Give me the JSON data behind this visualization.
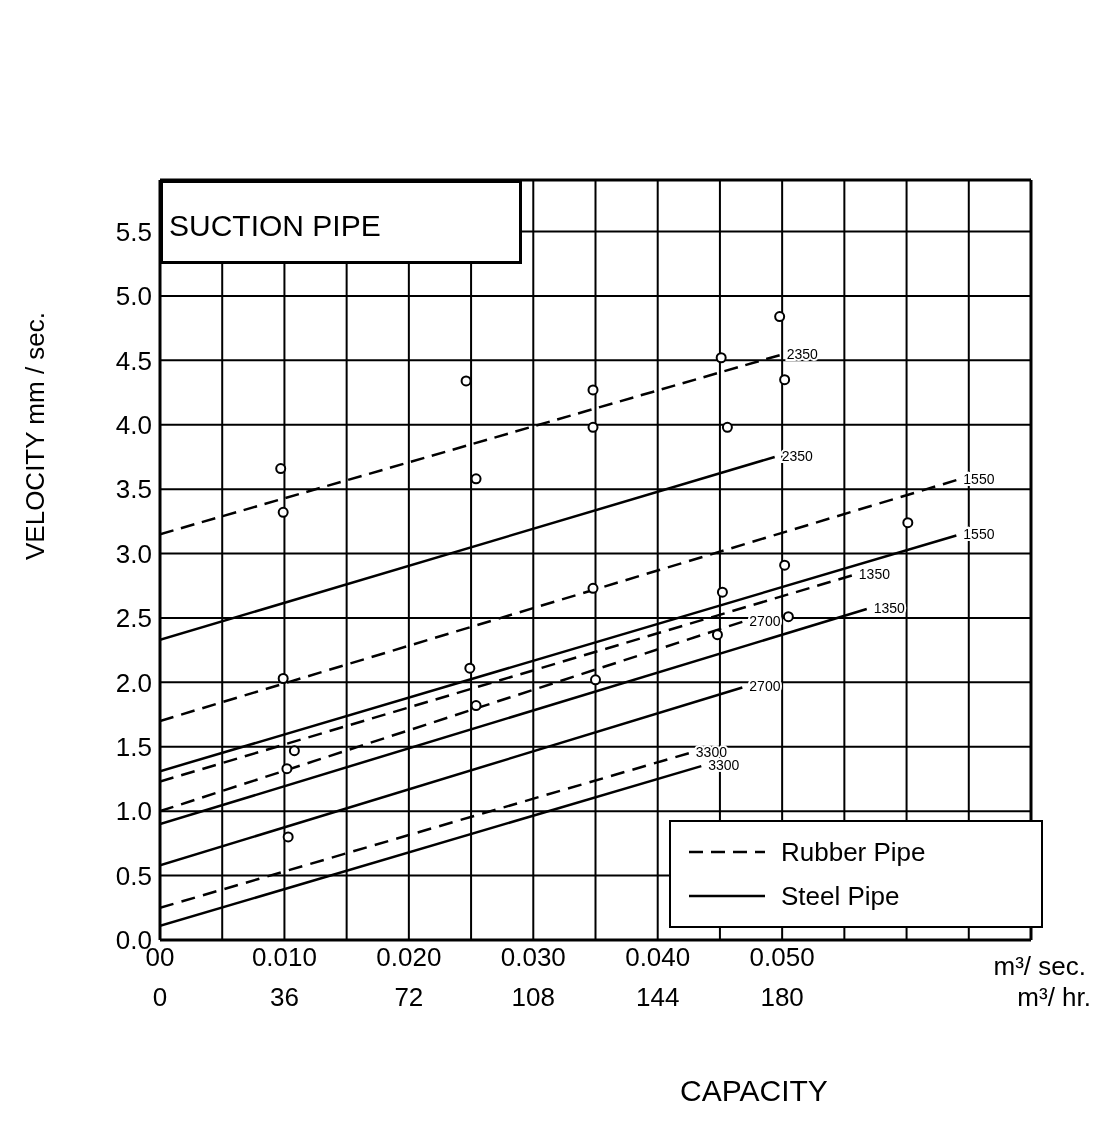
{
  "chart_data": {
    "type": "line",
    "title": "SUCTION PIPE",
    "xlabel": "m³/ sec.",
    "x2label": "m³/ hr.",
    "ylabel": "VELOCITY mm / sec.",
    "xlim": [
      0,
      0.07
    ],
    "xticks": [
      {
        "value": 0,
        "label": "00"
      },
      {
        "value": 0.005,
        "label": null
      },
      {
        "value": 0.01,
        "label": "0.010"
      },
      {
        "value": 0.015,
        "label": null
      },
      {
        "value": 0.02,
        "label": "0.020"
      },
      {
        "value": 0.025,
        "label": null
      },
      {
        "value": 0.03,
        "label": "0.030"
      },
      {
        "value": 0.035,
        "label": null
      },
      {
        "value": 0.04,
        "label": "0.040"
      },
      {
        "value": 0.045,
        "label": null
      },
      {
        "value": 0.05,
        "label": "0.050"
      },
      {
        "value": 0.055,
        "label": null
      },
      {
        "value": 0.06,
        "label": null
      },
      {
        "value": 0.065,
        "label": null
      },
      {
        "value": 0.07,
        "label": null
      }
    ],
    "x2lim": [
      0,
      252
    ],
    "x2ticks": [
      0,
      36,
      72,
      108,
      144,
      180
    ],
    "ylim": [
      0,
      5.9
    ],
    "yticks": [
      {
        "value": 0,
        "label": "0.0"
      },
      0.5,
      {
        "value": 1,
        "label": "1.0"
      },
      1.5,
      {
        "value": 2,
        "label": "2.0"
      },
      2.5,
      {
        "value": 3,
        "label": "3.0"
      },
      3.5,
      {
        "value": 4,
        "label": "4.0"
      },
      4.5,
      {
        "value": 5,
        "label": "5.0"
      },
      5.5
    ],
    "grid": true,
    "legend": "bottom right",
    "series": [
      {
        "name": "Rubber Pipe",
        "color": "#000000",
        "line_style": "dashed",
        "marker": "none",
        "x": [
          0,
          0.0498
        ],
        "values": [
          3.15,
          4.54
        ]
      },
      {
        "name": "Steel Pipe",
        "color": "#000000",
        "line_style": "solid",
        "marker": "none",
        "x": [
          0,
          0.0494
        ],
        "values": [
          2.33,
          3.75
        ]
      },
      {
        "color": "#000000",
        "line_style": "dashed",
        "marker": "none",
        "x": [
          0,
          0.064
        ],
        "values": [
          1.7,
          3.57
        ]
      },
      {
        "color": "#000000",
        "line_style": "solid",
        "marker": "none",
        "x": [
          0,
          0.064
        ],
        "values": [
          1.31,
          3.14
        ]
      },
      {
        "color": "#000000",
        "line_style": "dashed",
        "marker": "none",
        "x": [
          0,
          0.0556
        ],
        "values": [
          1.23,
          2.83
        ]
      },
      {
        "color": "#000000",
        "line_style": "dashed",
        "marker": "none",
        "x": [
          0,
          0.0468
        ],
        "values": [
          1.0,
          2.47
        ]
      },
      {
        "color": "#000000",
        "line_style": "solid",
        "marker": "none",
        "x": [
          0,
          0.0568
        ],
        "values": [
          0.9,
          2.57
        ]
      },
      {
        "color": "#000000",
        "line_style": "solid",
        "marker": "none",
        "x": [
          0,
          0.0468
        ],
        "values": [
          0.58,
          1.96
        ]
      },
      {
        "color": "#000000",
        "line_style": "dashed",
        "marker": "none",
        "x": [
          0,
          0.0425
        ],
        "values": [
          0.25,
          1.45
        ]
      },
      {
        "color": "#000000",
        "line_style": "solid",
        "marker": "none",
        "x": [
          0,
          0.0435
        ],
        "values": [
          0.11,
          1.35
        ]
      },
      {
        "type": "scatter",
        "color": "#000000",
        "marker": "circle",
        "x": [
          0.0097,
          0.0099,
          0.0099,
          0.0108,
          0.0102,
          0.0103,
          0.0246,
          0.0254,
          0.0249,
          0.0254,
          0.0348,
          0.0348,
          0.0348,
          0.035,
          0.0498,
          0.0451,
          0.0502,
          0.0456,
          0.0601,
          0.0502,
          0.0452,
          0.0448,
          0.0505
        ],
        "values": [
          3.66,
          3.32,
          2.03,
          1.47,
          1.33,
          0.8,
          4.34,
          3.58,
          2.11,
          1.82,
          4.27,
          3.98,
          2.73,
          2.02,
          4.84,
          4.52,
          4.35,
          3.98,
          3.24,
          2.91,
          2.7,
          2.37,
          2.51
        ]
      }
    ],
    "annotations": [
      "CAPACITY",
      {
        "text": "2350",
        "x": 0.0498,
        "y": 4.54
      },
      {
        "text": "2350",
        "x": 0.0494,
        "y": 3.75
      },
      {
        "text": "1550",
        "x": 0.064,
        "y": 3.57
      },
      {
        "text": "1550",
        "x": 0.064,
        "y": 3.14
      },
      {
        "text": "1350",
        "x": 0.0556,
        "y": 2.83
      },
      {
        "text": "2700",
        "x": 0.0468,
        "y": 2.47
      },
      {
        "text": "1350",
        "x": 0.0568,
        "y": 2.57
      },
      {
        "text": "2700",
        "x": 0.0468,
        "y": 1.96
      },
      {
        "text": "3300",
        "x": 0.0425,
        "y": 1.45
      },
      {
        "text": "3300",
        "x": 0.0435,
        "y": 1.35
      }
    ]
  }
}
